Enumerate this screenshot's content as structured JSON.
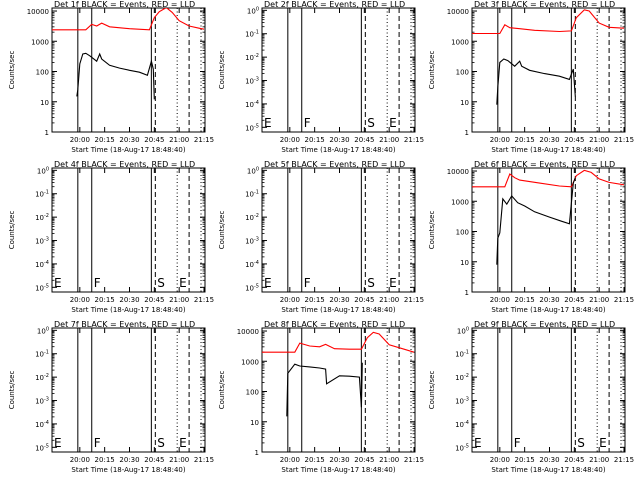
{
  "colors": {
    "events": "#000000",
    "lld": "#ff0000",
    "frame": "#000000",
    "background": "#ffffff"
  },
  "chart_data": [
    {
      "detector": "1f",
      "title": "Det 1f BLACK = Events, RED = LLD",
      "xlabel": "Start Time (18-Aug-17 18:48:40)",
      "ylabel": "Counts/sec",
      "yscale": "log",
      "ytick_style": "plain",
      "xticks": [
        "20:00",
        "20:15",
        "20:30",
        "20:45",
        "21:00",
        "21:15"
      ],
      "yticks": [
        "1",
        "10",
        "100",
        "1000",
        "10000"
      ],
      "letters": [],
      "events": [
        [
          19.97,
          15
        ],
        [
          19.98,
          25
        ],
        [
          20.0,
          180
        ],
        [
          20.03,
          380
        ],
        [
          20.06,
          400
        ],
        [
          20.1,
          330
        ],
        [
          20.17,
          220
        ],
        [
          20.2,
          380
        ],
        [
          20.22,
          260
        ],
        [
          20.3,
          160
        ],
        [
          20.4,
          130
        ],
        [
          20.5,
          110
        ],
        [
          20.6,
          95
        ],
        [
          20.68,
          75
        ],
        [
          20.72,
          220
        ],
        [
          20.74,
          120
        ],
        [
          20.75,
          12
        ]
      ],
      "lld": [
        [
          19.72,
          2400
        ],
        [
          20.06,
          2400
        ],
        [
          20.12,
          3600
        ],
        [
          20.17,
          3200
        ],
        [
          20.22,
          4000
        ],
        [
          20.3,
          3000
        ],
        [
          20.5,
          2600
        ],
        [
          20.7,
          2400
        ],
        [
          20.75,
          6000
        ],
        [
          20.8,
          9500
        ],
        [
          20.87,
          13000
        ],
        [
          20.93,
          9000
        ],
        [
          21.0,
          4800
        ],
        [
          21.1,
          3200
        ],
        [
          21.2,
          2700
        ],
        [
          21.25,
          2500
        ]
      ]
    },
    {
      "detector": "2f",
      "title": "Det 2f BLACK = Events, RED = LLD",
      "xlabel": "Start Time (18-Aug-17 18:48:40)",
      "ylabel": "Counts/sec",
      "yscale": "log",
      "ytick_style": "sci",
      "xticks": [
        "20:00",
        "20:15",
        "20:30",
        "20:45",
        "21:00",
        "21:15"
      ],
      "yticks": [
        "10^0",
        "10^-1",
        "10^-2",
        "10^-3",
        "10^-4",
        "10^-5"
      ],
      "letters": [
        "E",
        "F",
        "S",
        "E"
      ],
      "events": [],
      "lld": []
    },
    {
      "detector": "3f",
      "title": "Det 3f BLACK = Events, RED = LLD",
      "xlabel": "Start Time (18-Aug-17 18:48:40)",
      "ylabel": "Counts/sec",
      "yscale": "log",
      "ytick_style": "plain",
      "xticks": [
        "20:00",
        "20:15",
        "20:30",
        "20:45",
        "21:00",
        "21:15"
      ],
      "yticks": [
        "1",
        "10",
        "100",
        "1000",
        "10000"
      ],
      "letters": [],
      "events": [
        [
          19.97,
          8
        ],
        [
          19.98,
          30
        ],
        [
          20.0,
          200
        ],
        [
          20.04,
          260
        ],
        [
          20.08,
          230
        ],
        [
          20.15,
          150
        ],
        [
          20.2,
          220
        ],
        [
          20.22,
          150
        ],
        [
          20.3,
          110
        ],
        [
          20.45,
          85
        ],
        [
          20.6,
          70
        ],
        [
          20.7,
          55
        ],
        [
          20.74,
          120
        ],
        [
          20.76,
          15
        ]
      ],
      "lld": [
        [
          19.72,
          1800
        ],
        [
          20.0,
          1800
        ],
        [
          20.05,
          3500
        ],
        [
          20.1,
          2800
        ],
        [
          20.2,
          2600
        ],
        [
          20.35,
          2300
        ],
        [
          20.6,
          2100
        ],
        [
          20.72,
          2200
        ],
        [
          20.77,
          6000
        ],
        [
          20.85,
          11000
        ],
        [
          20.9,
          10000
        ],
        [
          21.0,
          4000
        ],
        [
          21.1,
          2900
        ],
        [
          21.25,
          2700
        ]
      ]
    },
    {
      "detector": "4f",
      "title": "Det 4f BLACK = Events, RED = LLD",
      "xlabel": "Start Time (18-Aug-17 18:48:40)",
      "ylabel": "Counts/sec",
      "yscale": "log",
      "ytick_style": "sci",
      "xticks": [
        "20:00",
        "20:15",
        "20:30",
        "20:45",
        "21:00",
        "21:15"
      ],
      "yticks": [
        "10^0",
        "10^-1",
        "10^-2",
        "10^-3",
        "10^-4",
        "10^-5"
      ],
      "letters": [
        "E",
        "F",
        "S",
        "E"
      ],
      "events": [],
      "lld": []
    },
    {
      "detector": "5f",
      "title": "Det 5f BLACK = Events, RED = LLD",
      "xlabel": "Start Time (18-Aug-17 18:48:40)",
      "ylabel": "Counts/sec",
      "yscale": "log",
      "ytick_style": "sci",
      "xticks": [
        "20:00",
        "20:15",
        "20:30",
        "20:45",
        "21:00",
        "21:15"
      ],
      "yticks": [
        "10^0",
        "10^-1",
        "10^-2",
        "10^-3",
        "10^-4",
        "10^-5"
      ],
      "letters": [
        "E",
        "F",
        "S",
        "E"
      ],
      "events": [],
      "lld": []
    },
    {
      "detector": "6f",
      "title": "Det 6f BLACK = Events, RED = LLD",
      "xlabel": "Start Time (18-Aug-17 18:48:40)",
      "ylabel": "Counts/sec",
      "yscale": "log",
      "ytick_style": "plain",
      "xticks": [
        "20:00",
        "20:15",
        "20:30",
        "20:45",
        "21:00",
        "21:15"
      ],
      "yticks": [
        "1",
        "10",
        "100",
        "1000",
        "10000"
      ],
      "letters": [],
      "events": [
        [
          19.97,
          8
        ],
        [
          19.98,
          60
        ],
        [
          20.0,
          90
        ],
        [
          20.03,
          1200
        ],
        [
          20.07,
          800
        ],
        [
          20.12,
          1500
        ],
        [
          20.18,
          900
        ],
        [
          20.25,
          700
        ],
        [
          20.35,
          450
        ],
        [
          20.5,
          300
        ],
        [
          20.62,
          220
        ],
        [
          20.7,
          180
        ],
        [
          20.74,
          4000
        ],
        [
          20.76,
          6000
        ]
      ],
      "lld": [
        [
          19.72,
          3000
        ],
        [
          20.05,
          3000
        ],
        [
          20.1,
          8000
        ],
        [
          20.15,
          6000
        ],
        [
          20.2,
          5000
        ],
        [
          20.4,
          4000
        ],
        [
          20.6,
          3200
        ],
        [
          20.72,
          3000
        ],
        [
          20.77,
          7000
        ],
        [
          20.85,
          10500
        ],
        [
          20.92,
          9000
        ],
        [
          21.0,
          5500
        ],
        [
          21.1,
          4200
        ],
        [
          21.25,
          3500
        ]
      ]
    },
    {
      "detector": "7f",
      "title": "Det 7f BLACK = Events, RED = LLD",
      "xlabel": "Start Time (18-Aug-17 18:48:40)",
      "ylabel": "Counts/sec",
      "yscale": "log",
      "ytick_style": "sci",
      "xticks": [
        "20:00",
        "20:15",
        "20:30",
        "20:45",
        "21:00",
        "21:15"
      ],
      "yticks": [
        "10^0",
        "10^-1",
        "10^-2",
        "10^-3",
        "10^-4",
        "10^-5"
      ],
      "letters": [
        "E",
        "F",
        "S",
        "E"
      ],
      "events": [],
      "lld": []
    },
    {
      "detector": "8f",
      "title": "Det 8f BLACK = Events, RED = LLD",
      "xlabel": "Start Time (18-Aug-17 18:48:40)",
      "ylabel": "Counts/sec",
      "yscale": "log",
      "ytick_style": "plain",
      "xticks": [
        "20:00",
        "20:15",
        "20:30",
        "20:45",
        "21:00",
        "21:15"
      ],
      "yticks": [
        "1",
        "10",
        "100",
        "1000",
        "10000"
      ],
      "letters": [],
      "events": [
        [
          19.97,
          15
        ],
        [
          19.98,
          400
        ],
        [
          20.05,
          800
        ],
        [
          20.1,
          700
        ],
        [
          20.2,
          650
        ],
        [
          20.3,
          600
        ],
        [
          20.36,
          550
        ],
        [
          20.37,
          180
        ],
        [
          20.5,
          330
        ],
        [
          20.6,
          320
        ],
        [
          20.7,
          300
        ],
        [
          20.72,
          30
        ],
        [
          20.73,
          900
        ]
      ],
      "lld": [
        [
          19.72,
          2000
        ],
        [
          20.05,
          2000
        ],
        [
          20.1,
          4000
        ],
        [
          20.2,
          3200
        ],
        [
          20.3,
          3000
        ],
        [
          20.36,
          3600
        ],
        [
          20.45,
          2600
        ],
        [
          20.6,
          2500
        ],
        [
          20.72,
          2500
        ],
        [
          20.78,
          6000
        ],
        [
          20.84,
          9000
        ],
        [
          20.9,
          8000
        ],
        [
          21.0,
          3500
        ],
        [
          21.15,
          2500
        ],
        [
          21.25,
          2000
        ]
      ]
    },
    {
      "detector": "9f",
      "title": "Det 9f BLACK = Events, RED = LLD",
      "xlabel": "Start Time (18-Aug-17 18:48:40)",
      "ylabel": "Counts/sec",
      "yscale": "log",
      "ytick_style": "sci",
      "xticks": [
        "20:00",
        "20:15",
        "20:30",
        "20:45",
        "21:00",
        "21:15"
      ],
      "yticks": [
        "10^0",
        "10^-1",
        "10^-2",
        "10^-3",
        "10^-4",
        "10^-5"
      ],
      "letters": [
        "E",
        "F",
        "S",
        "E"
      ],
      "events": [],
      "lld": []
    }
  ]
}
